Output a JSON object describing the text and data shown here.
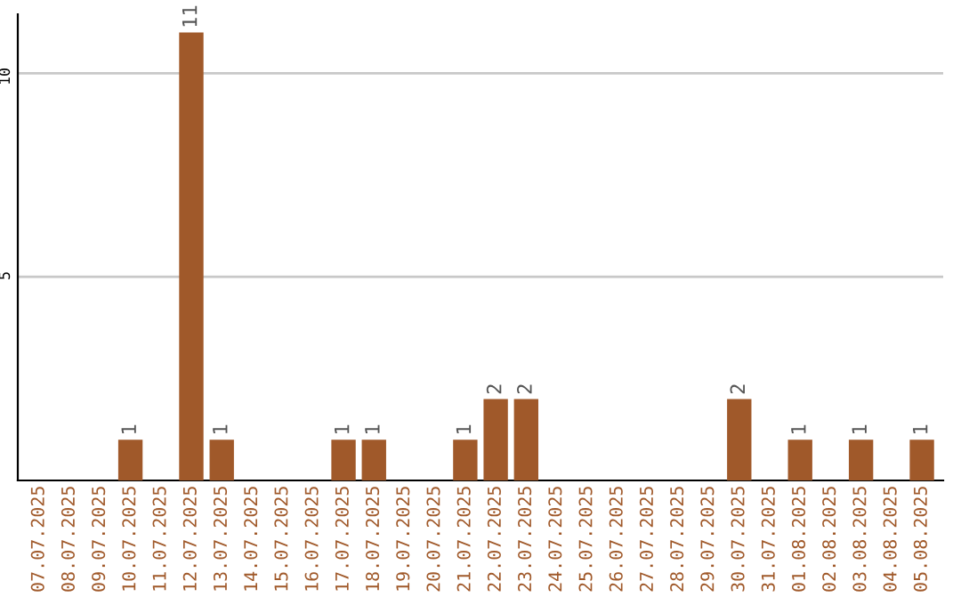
{
  "chart_data": {
    "type": "bar",
    "categories": [
      "07.07.2025",
      "08.07.2025",
      "09.07.2025",
      "10.07.2025",
      "11.07.2025",
      "12.07.2025",
      "13.07.2025",
      "14.07.2025",
      "15.07.2025",
      "16.07.2025",
      "17.07.2025",
      "18.07.2025",
      "19.07.2025",
      "20.07.2025",
      "21.07.2025",
      "22.07.2025",
      "23.07.2025",
      "24.07.2025",
      "25.07.2025",
      "26.07.2025",
      "27.07.2025",
      "28.07.2025",
      "29.07.2025",
      "30.07.2025",
      "31.07.2025",
      "01.08.2025",
      "02.08.2025",
      "03.08.2025",
      "04.08.2025",
      "05.08.2025"
    ],
    "values": [
      0,
      0,
      0,
      1,
      0,
      11,
      1,
      0,
      0,
      0,
      1,
      1,
      0,
      0,
      1,
      2,
      2,
      0,
      0,
      0,
      0,
      0,
      0,
      2,
      0,
      1,
      0,
      1,
      0,
      1
    ],
    "color": "#a0592a",
    "value_labels": [
      null,
      null,
      null,
      "1",
      null,
      "11",
      "1",
      null,
      null,
      null,
      "1",
      "1",
      null,
      null,
      "1",
      "2",
      "2",
      null,
      null,
      null,
      null,
      null,
      null,
      "2",
      null,
      "1",
      null,
      "1",
      null,
      "1"
    ],
    "ylim": [
      0,
      11.45
    ],
    "yticks": [
      5,
      10
    ],
    "grid": "y"
  }
}
